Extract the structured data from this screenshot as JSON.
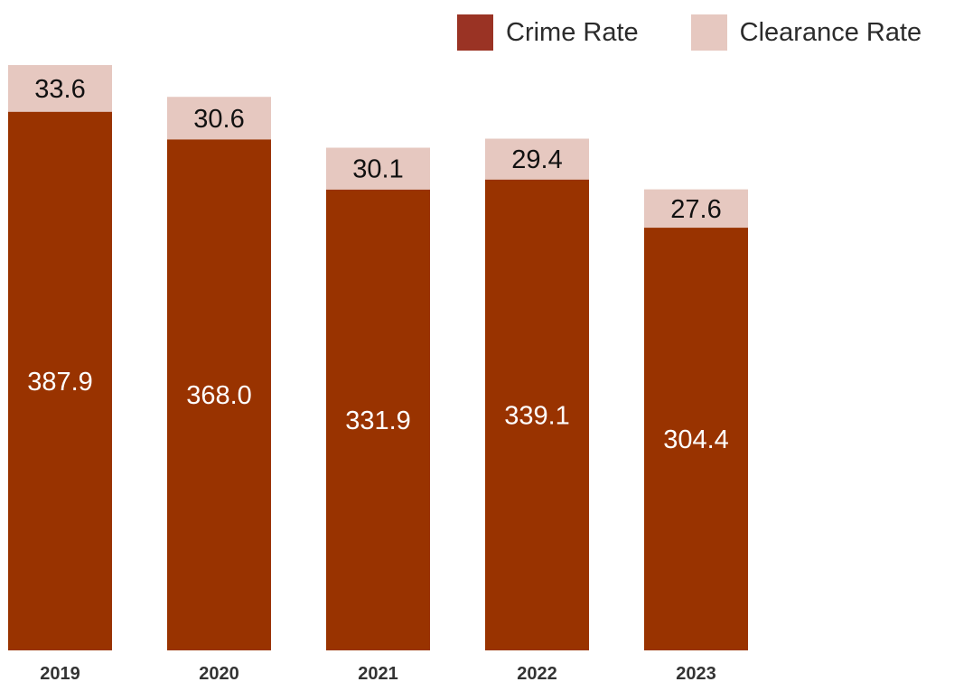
{
  "legend": {
    "items": [
      {
        "label": "Crime Rate",
        "color": "#9a3324"
      },
      {
        "label": "Clearance Rate",
        "color": "#e6c8c0"
      }
    ]
  },
  "chart_data": {
    "type": "bar",
    "stacked": true,
    "categories": [
      "2019",
      "2020",
      "2021",
      "2022",
      "2023"
    ],
    "series": [
      {
        "name": "Crime Rate",
        "color": "#993300",
        "values": [
          387.9,
          368.0,
          331.9,
          339.1,
          304.4
        ]
      },
      {
        "name": "Clearance Rate",
        "color": "#e6c8c0",
        "values": [
          33.6,
          30.6,
          30.1,
          29.4,
          27.6
        ]
      }
    ],
    "value_labels": {
      "Crime Rate": [
        "387.9",
        "368.0",
        "331.9",
        "339.1",
        "304.4"
      ],
      "Clearance Rate": [
        "33.6",
        "30.6",
        "30.1",
        "29.4",
        "27.6"
      ]
    },
    "ylim": [
      0,
      421.5
    ],
    "grid": false,
    "legend_position": "top-right"
  }
}
